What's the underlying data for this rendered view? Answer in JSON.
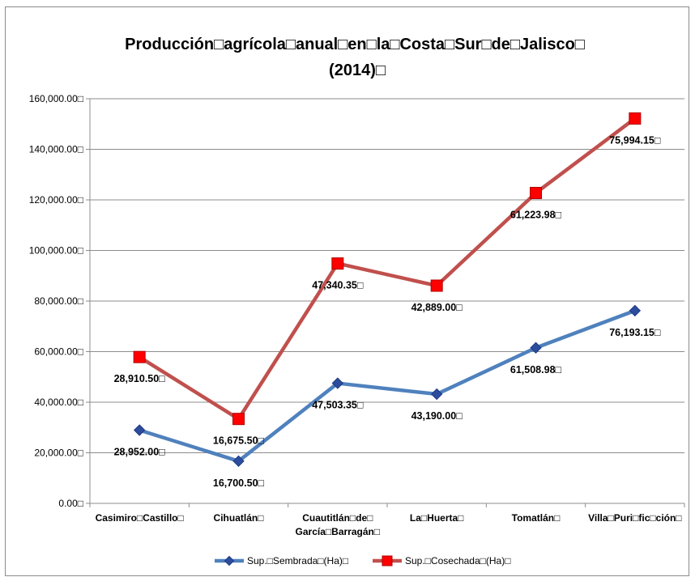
{
  "chart_data": {
    "type": "line",
    "title_lines": [
      "Producción□agrícola□anual□en□la□Costa□Sur□de□Jalisco□",
      "(2014)□"
    ],
    "categories": [
      [
        "Casimiro□Castillo□"
      ],
      [
        "Cihuatlán□"
      ],
      [
        "Cuautitlán□de□",
        "García□Barragán□"
      ],
      [
        "La□Huerta□"
      ],
      [
        "Tomatlán□"
      ],
      [
        "Villa□Puri□fic□ción□"
      ]
    ],
    "yticks": [
      "0.00□",
      "20,000.00□",
      "40,000.00□",
      "60,000.00□",
      "80,000.00□",
      "100,000.00□",
      "120,000.00□",
      "140,000.00□",
      "160,000.00□"
    ],
    "ylim": [
      0,
      160000
    ],
    "grid": true,
    "legend_position": "bottom",
    "series": [
      {
        "name": "Sup.□Sembrada□(Ha)□",
        "color": "#4f81bd",
        "marker": "diamond",
        "values": [
          28952,
          16700.5,
          47503.35,
          43190,
          61508.98,
          76193.15
        ],
        "labels": [
          "28,952.00□",
          "16,700.50□",
          "47,503.35□",
          "43,190.00□",
          "61,508.98□",
          "76,193.15□"
        ]
      },
      {
        "name": "Sup.□Cosechada□(Ha)□",
        "color": "#c0504d",
        "marker_color": "#ff0000",
        "marker": "square",
        "stacked": true,
        "values": [
          28910.5,
          16675.5,
          47340.35,
          42889,
          61223.98,
          75994.15
        ],
        "labels": [
          "28,910.50□",
          "16,675.50□",
          "47,340.35□",
          "42,889.00□",
          "61,223.98□",
          "75,994.15□"
        ]
      }
    ]
  }
}
